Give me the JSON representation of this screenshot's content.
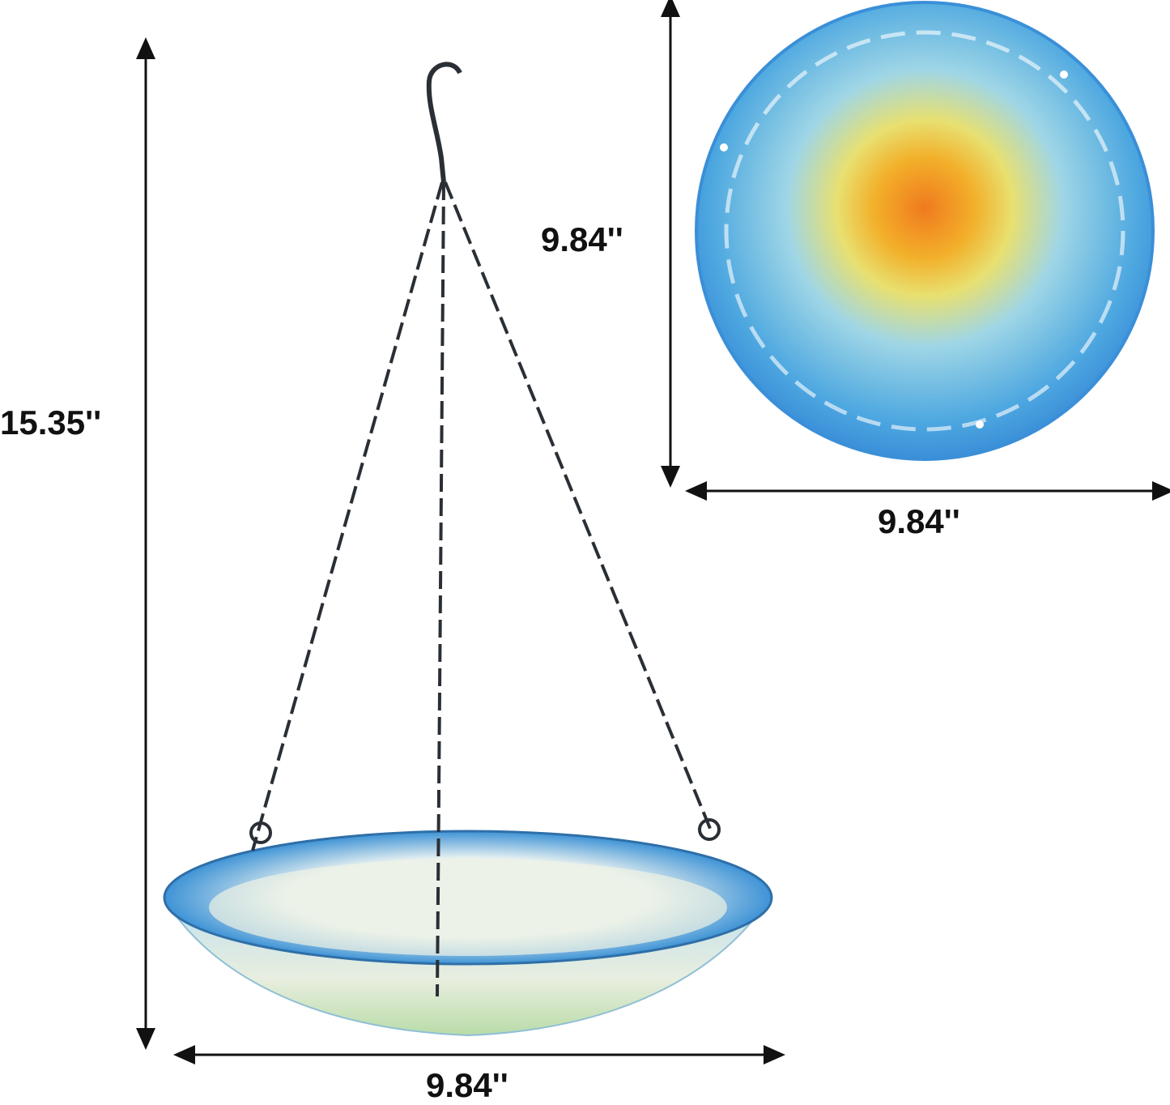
{
  "dimensions": {
    "total_height": "15.35''",
    "plate_height": "9.84''",
    "plate_width": "9.84''",
    "bowl_width": "9.84''"
  },
  "colors": {
    "rim_blue": "#3a8fd8",
    "center_orange": "#f07a1e",
    "center_yellow": "#f2d23a",
    "chain": "#2a2f35",
    "arrow": "#111111"
  }
}
